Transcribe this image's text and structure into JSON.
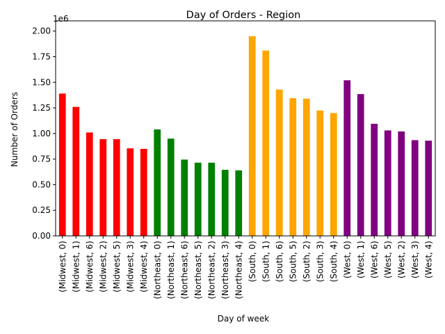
{
  "chart_data": {
    "type": "bar",
    "title": "Day of Orders - Region",
    "xlabel": "Day of week",
    "ylabel": "Number of Orders",
    "y_scale_label": "1e6",
    "ylim": [
      0,
      2.1
    ],
    "yticks": [
      {
        "value": 0.0,
        "label": "0.00"
      },
      {
        "value": 0.25,
        "label": "0.25"
      },
      {
        "value": 0.5,
        "label": "0.50"
      },
      {
        "value": 0.75,
        "label": "0.75"
      },
      {
        "value": 1.0,
        "label": "1.00"
      },
      {
        "value": 1.25,
        "label": "1.25"
      },
      {
        "value": 1.5,
        "label": "1.50"
      },
      {
        "value": 1.75,
        "label": "1.75"
      },
      {
        "value": 2.0,
        "label": "2.00"
      }
    ],
    "grid": false,
    "legend": "none",
    "region_colors": {
      "Midwest": "#ff0000",
      "Northeast": "#008000",
      "South": "#ffa500",
      "West": "#800080"
    },
    "categories": [
      "(Midwest, 0)",
      "(Midwest, 1)",
      "(Midwest, 6)",
      "(Midwest, 2)",
      "(Midwest, 5)",
      "(Midwest, 3)",
      "(Midwest, 4)",
      "(Northeast, 0)",
      "(Northeast, 1)",
      "(Northeast, 6)",
      "(Northeast, 5)",
      "(Northeast, 2)",
      "(Northeast, 3)",
      "(Northeast, 4)",
      "(South, 0)",
      "(South, 1)",
      "(South, 6)",
      "(South, 5)",
      "(South, 2)",
      "(South, 3)",
      "(South, 4)",
      "(West, 0)",
      "(West, 1)",
      "(West, 6)",
      "(West, 5)",
      "(West, 2)",
      "(West, 3)",
      "(West, 4)"
    ],
    "bar_regions": [
      "Midwest",
      "Midwest",
      "Midwest",
      "Midwest",
      "Midwest",
      "Midwest",
      "Midwest",
      "Northeast",
      "Northeast",
      "Northeast",
      "Northeast",
      "Northeast",
      "Northeast",
      "Northeast",
      "South",
      "South",
      "South",
      "South",
      "South",
      "South",
      "South",
      "West",
      "West",
      "West",
      "West",
      "West",
      "West",
      "West"
    ],
    "values": [
      1.39,
      1.26,
      1.01,
      0.945,
      0.945,
      0.855,
      0.85,
      1.04,
      0.95,
      0.745,
      0.715,
      0.715,
      0.645,
      0.64,
      1.95,
      1.81,
      1.43,
      1.345,
      1.34,
      1.225,
      1.2,
      1.52,
      1.385,
      1.095,
      1.03,
      1.02,
      0.935,
      0.93
    ]
  }
}
